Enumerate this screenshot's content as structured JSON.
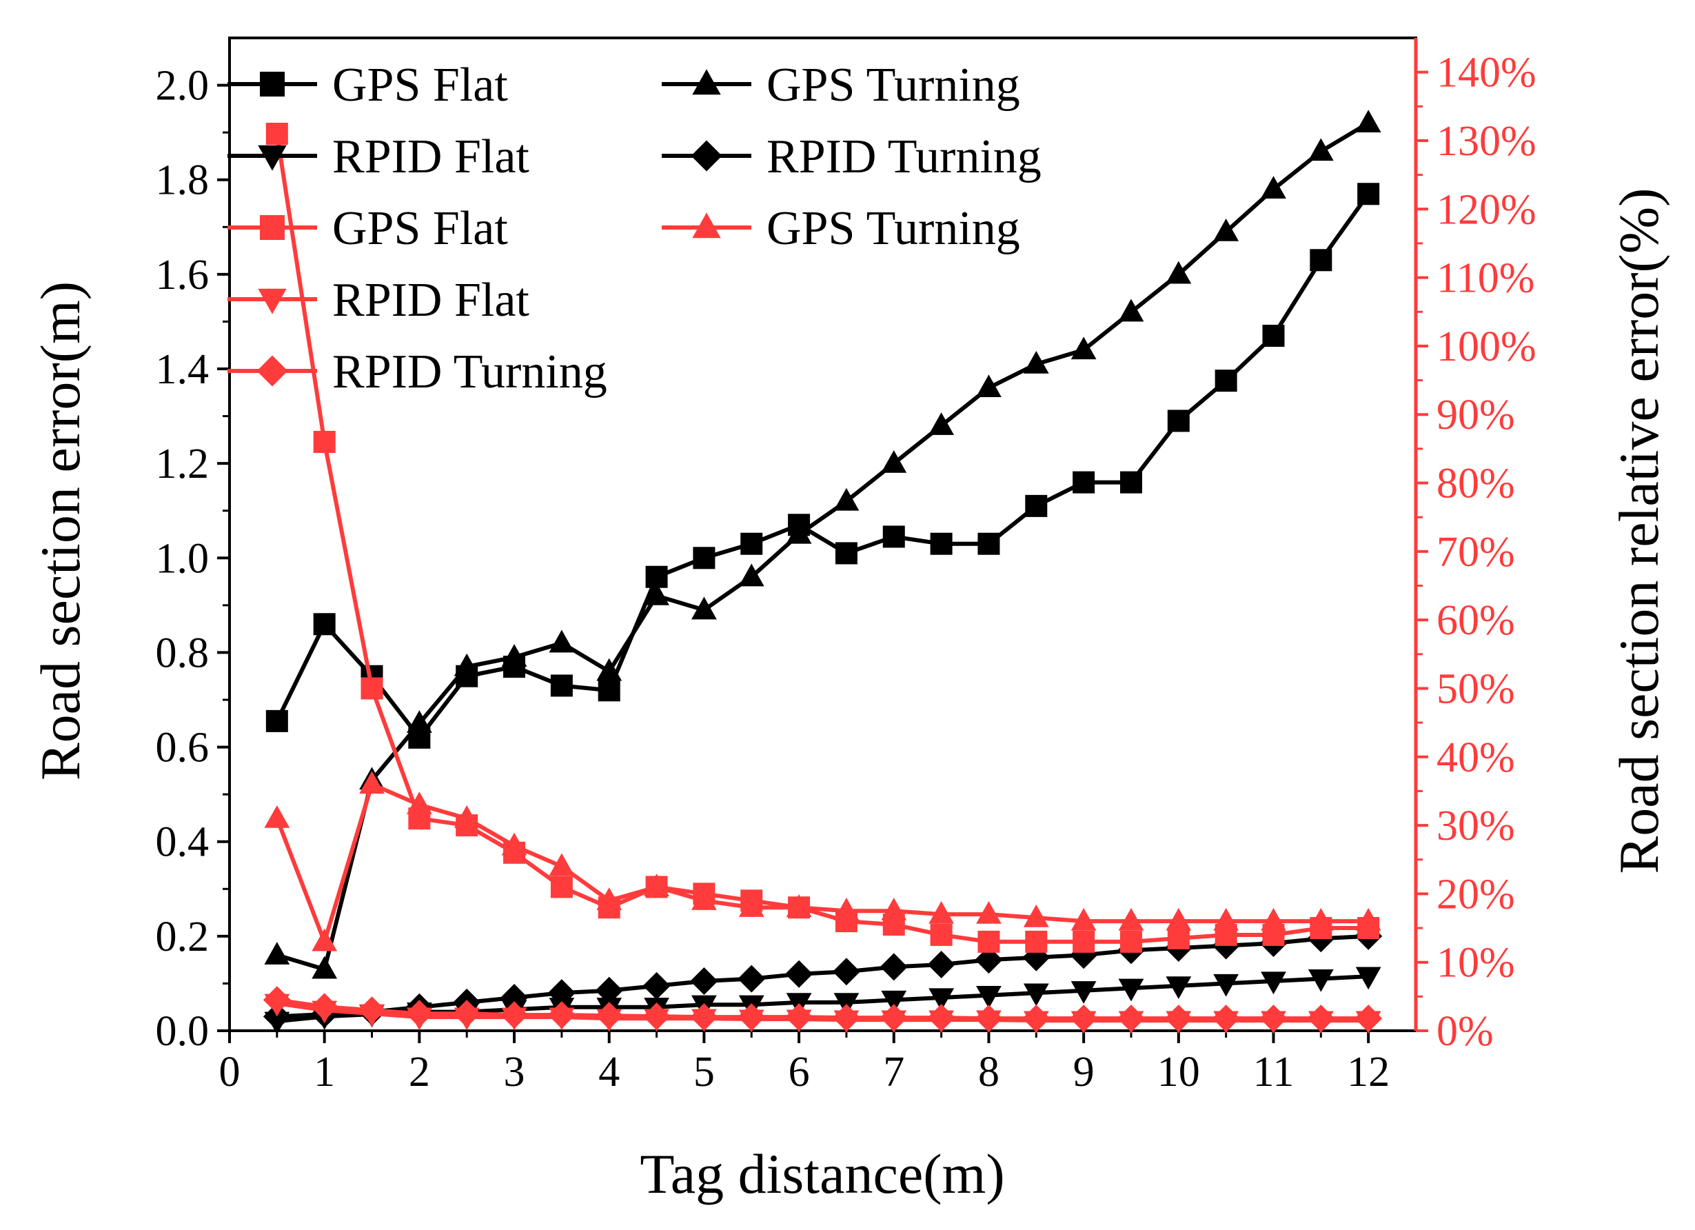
{
  "colors": {
    "black": "#000000",
    "red": "#FF3B3B"
  },
  "chart_data": {
    "type": "line",
    "xlabel": "Tag distance(m)",
    "ylabel_left": "Road section error(m)",
    "ylabel_right": "Road section relative error(%)",
    "xlim": [
      0,
      12.5
    ],
    "ylim_left": [
      0,
      2.1
    ],
    "ylim_right": [
      0,
      145
    ],
    "x_ticks": [
      0,
      1,
      2,
      3,
      4,
      5,
      6,
      7,
      8,
      9,
      10,
      11,
      12
    ],
    "x_tick_labels": [
      "0",
      "1",
      "2",
      "3",
      "4",
      "5",
      "6",
      "7",
      "8",
      "9",
      "10",
      "11",
      "12"
    ],
    "y_left_ticks": [
      0,
      0.2,
      0.4,
      0.6,
      0.8,
      1.0,
      1.2,
      1.4,
      1.6,
      1.8,
      2.0
    ],
    "y_left_tick_labels": [
      "0.0",
      "0.2",
      "0.4",
      "0.6",
      "0.8",
      "1.0",
      "1.2",
      "1.4",
      "1.6",
      "1.8",
      "2.0"
    ],
    "y_right_ticks": [
      0,
      10,
      20,
      30,
      40,
      50,
      60,
      70,
      80,
      90,
      100,
      110,
      120,
      130,
      140
    ],
    "y_right_tick_labels": [
      "0%",
      "10%",
      "20%",
      "30%",
      "40%",
      "50%",
      "60%",
      "70%",
      "80%",
      "90%",
      "100%",
      "110%",
      "120%",
      "130%",
      "140%"
    ],
    "legend_position": "top-left",
    "x": [
      0.5,
      1,
      1.5,
      2,
      2.5,
      3,
      3.5,
      4,
      4.5,
      5,
      5.5,
      6,
      6.5,
      7,
      7.5,
      8,
      8.5,
      9,
      9.5,
      10,
      10.5,
      11,
      11.5,
      12
    ],
    "series": [
      {
        "name": "GPS Flat",
        "axis": "left",
        "color": "black",
        "marker": "square",
        "values": [
          0.655,
          0.86,
          0.75,
          0.62,
          0.75,
          0.77,
          0.73,
          0.72,
          0.96,
          1.0,
          1.03,
          1.07,
          1.01,
          1.045,
          1.03,
          1.03,
          1.11,
          1.16,
          1.16,
          1.29,
          1.375,
          1.47,
          1.63,
          1.77
        ]
      },
      {
        "name": "GPS Turning",
        "axis": "left",
        "color": "black",
        "marker": "triangle-up",
        "values": [
          0.16,
          0.13,
          0.53,
          0.65,
          0.77,
          0.79,
          0.82,
          0.76,
          0.92,
          0.89,
          0.96,
          1.05,
          1.12,
          1.2,
          1.28,
          1.36,
          1.41,
          1.44,
          1.52,
          1.6,
          1.69,
          1.78,
          1.86,
          1.92
        ]
      },
      {
        "name": "RPID Flat",
        "axis": "left",
        "color": "black",
        "marker": "triangle-down",
        "values": [
          0.02,
          0.03,
          0.035,
          0.04,
          0.04,
          0.045,
          0.05,
          0.05,
          0.05,
          0.055,
          0.055,
          0.06,
          0.06,
          0.065,
          0.07,
          0.075,
          0.08,
          0.085,
          0.09,
          0.095,
          0.1,
          0.105,
          0.11,
          0.115
        ]
      },
      {
        "name": "RPID Turning",
        "axis": "left",
        "color": "black",
        "marker": "diamond",
        "values": [
          0.03,
          0.035,
          0.04,
          0.05,
          0.06,
          0.07,
          0.08,
          0.085,
          0.095,
          0.105,
          0.11,
          0.12,
          0.125,
          0.135,
          0.14,
          0.15,
          0.155,
          0.16,
          0.17,
          0.175,
          0.18,
          0.185,
          0.195,
          0.2
        ]
      },
      {
        "name": "GPS Flat",
        "axis": "right",
        "color": "red",
        "marker": "square",
        "values": [
          131,
          86,
          50,
          31,
          30,
          26,
          21,
          18,
          21,
          20,
          19,
          18,
          16,
          15.5,
          14,
          13,
          13,
          13,
          13,
          13.5,
          14,
          14,
          15,
          15
        ]
      },
      {
        "name": "GPS Turning",
        "axis": "right",
        "color": "red",
        "marker": "triangle-up",
        "values": [
          31,
          13,
          36,
          33,
          31,
          27,
          24,
          19,
          21,
          19,
          18,
          18,
          17.5,
          17.5,
          17,
          17,
          16.5,
          16,
          16,
          16,
          16,
          16,
          16,
          16
        ]
      },
      {
        "name": "RPID Flat",
        "axis": "right",
        "color": "red",
        "marker": "triangle-down",
        "values": [
          4,
          3,
          2.5,
          2,
          2,
          2,
          2,
          1.8,
          1.8,
          1.8,
          1.7,
          1.7,
          1.6,
          1.6,
          1.6,
          1.6,
          1.5,
          1.5,
          1.5,
          1.5,
          1.5,
          1.5,
          1.5,
          1.5
        ]
      },
      {
        "name": "RPID Turning",
        "axis": "right",
        "color": "red",
        "marker": "diamond",
        "values": [
          4.5,
          3.5,
          3,
          2.5,
          2.5,
          2.3,
          2.3,
          2.2,
          2.1,
          2.0,
          2.0,
          2.0,
          1.9,
          1.9,
          1.9,
          1.8,
          1.8,
          1.8,
          1.8,
          1.8,
          1.8,
          1.8,
          1.8,
          1.8
        ]
      }
    ]
  }
}
